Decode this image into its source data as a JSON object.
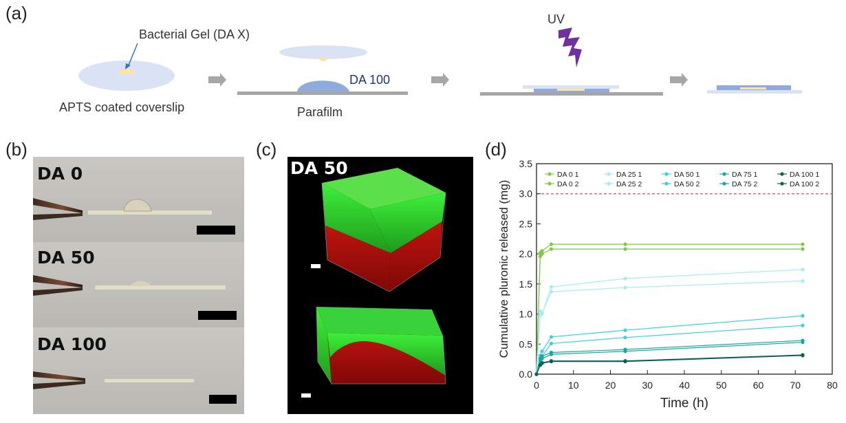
{
  "panels": {
    "a": "(a)",
    "b": "(b)",
    "c": "(c)",
    "d": "(d)"
  },
  "schematic": {
    "bacterial_gel": "Bacterial Gel (DA X)",
    "coverslip": "APTS coated coverslip",
    "da100": "DA 100",
    "parafilm": "Parafilm",
    "uv": "UV"
  },
  "photos": {
    "labels": [
      "DA 0",
      "DA 50",
      "DA 100"
    ]
  },
  "confocal": {
    "label": "DA 50"
  },
  "colors": {
    "gel_blue": "#a8b8e0",
    "gel_dark_blue": "#7b93d6",
    "gel_yellow": "#f6e6a2",
    "parafilm_gray": "#a6a6a6",
    "uv_purple": "#7030a0",
    "arrow_gray": "#a6a6a6",
    "threshold_red": "#d9534f"
  },
  "chart_data": {
    "type": "line",
    "xlabel": "Time (h)",
    "ylabel": "Cumulative pluronic released (mg)",
    "xlim": [
      0,
      80
    ],
    "ylim": [
      0,
      3.5
    ],
    "xticks": [
      0,
      10,
      20,
      30,
      40,
      50,
      60,
      70,
      80
    ],
    "yticks": [
      0.0,
      0.5,
      1.0,
      1.5,
      2.0,
      2.5,
      3.0,
      3.5
    ],
    "reference_line": 3.0,
    "legend_position": "top",
    "series": [
      {
        "name": "DA 0 1",
        "color": "#7ecb3f",
        "x": [
          0,
          1,
          1.5,
          4,
          24,
          72
        ],
        "y": [
          0,
          1.96,
          2.0,
          2.08,
          2.08,
          2.08
        ]
      },
      {
        "name": "DA 0 2",
        "color": "#7ecb3f",
        "x": [
          0,
          1,
          1.5,
          4,
          24,
          72
        ],
        "y": [
          0,
          2.02,
          2.05,
          2.16,
          2.16,
          2.16
        ]
      },
      {
        "name": "DA 25 1",
        "color": "#a6ecf0",
        "x": [
          0,
          1,
          1.5,
          4,
          24,
          72
        ],
        "y": [
          0,
          1.05,
          1.0,
          1.45,
          1.59,
          1.74
        ]
      },
      {
        "name": "DA 25 2",
        "color": "#a6ecf0",
        "x": [
          0,
          1,
          1.5,
          4,
          24,
          72
        ],
        "y": [
          0,
          0.98,
          1.02,
          1.37,
          1.44,
          1.55
        ]
      },
      {
        "name": "DA 50 1",
        "color": "#3bcfe0",
        "x": [
          0,
          1,
          1.5,
          4,
          24,
          72
        ],
        "y": [
          0,
          0.31,
          0.38,
          0.62,
          0.73,
          0.97
        ]
      },
      {
        "name": "DA 50 2",
        "color": "#3bcfe0",
        "x": [
          0,
          1,
          1.5,
          4,
          24,
          72
        ],
        "y": [
          0,
          0.25,
          0.3,
          0.51,
          0.61,
          0.81
        ]
      },
      {
        "name": "DA 75 1",
        "color": "#17a89e",
        "x": [
          0,
          1,
          1.5,
          4,
          24,
          72
        ],
        "y": [
          0,
          0.26,
          0.3,
          0.36,
          0.41,
          0.56
        ]
      },
      {
        "name": "DA 75 2",
        "color": "#17a89e",
        "x": [
          0,
          1,
          1.5,
          4,
          24,
          72
        ],
        "y": [
          0,
          0.22,
          0.26,
          0.33,
          0.38,
          0.53
        ]
      },
      {
        "name": "DA 100 1",
        "color": "#0d5f5a",
        "x": [
          0,
          1,
          1.5,
          4,
          24,
          72
        ],
        "y": [
          0,
          0.15,
          0.19,
          0.22,
          0.22,
          0.32
        ]
      },
      {
        "name": "DA 100 2",
        "color": "#0d5f5a",
        "x": [
          0,
          1,
          1.5,
          4,
          24,
          72
        ],
        "y": [
          0,
          0.15,
          0.18,
          0.21,
          0.21,
          0.31
        ]
      }
    ]
  }
}
